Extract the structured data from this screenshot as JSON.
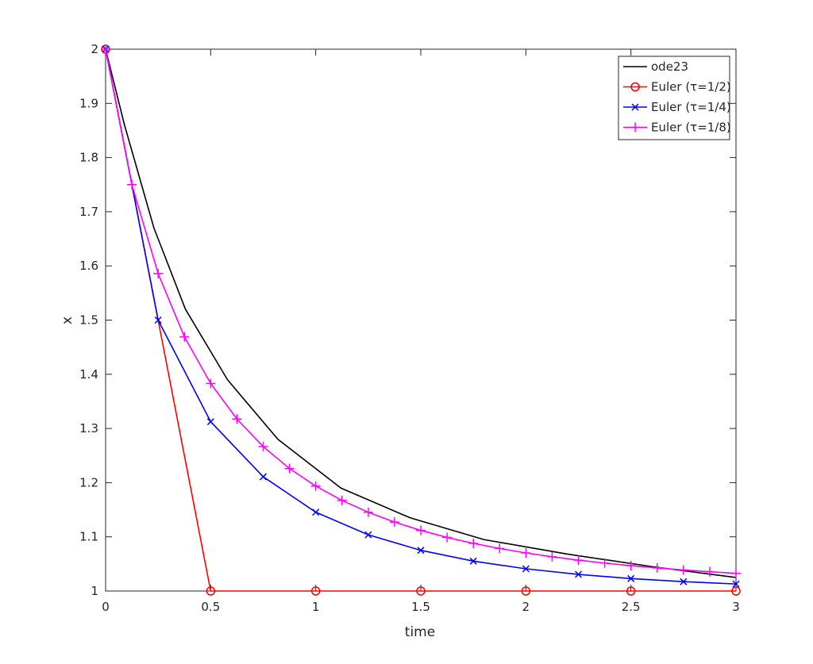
{
  "chart_data": {
    "type": "line",
    "title": "",
    "xlabel": "time",
    "ylabel": "x",
    "xlim": [
      0,
      3
    ],
    "ylim": [
      1,
      2
    ],
    "xticks": [
      "0",
      "0.5",
      "1",
      "1.5",
      "2",
      "2.5",
      "3"
    ],
    "yticks": [
      "1",
      "1.1",
      "1.2",
      "1.3",
      "1.4",
      "1.5",
      "1.6",
      "1.7",
      "1.8",
      "1.9",
      "2"
    ],
    "grid": false,
    "legend_position": "top-right",
    "series": [
      {
        "name": "ode23",
        "color": "#000000",
        "marker": "none",
        "x": [
          0,
          0.09,
          0.23,
          0.38,
          0.58,
          0.82,
          1.12,
          1.45,
          1.8,
          2.2,
          2.6,
          3.0
        ],
        "y": [
          2.0,
          1.86,
          1.67,
          1.52,
          1.39,
          1.28,
          1.19,
          1.135,
          1.095,
          1.068,
          1.045,
          1.025
        ]
      },
      {
        "name": "Euler (τ=1/2)",
        "color": "#ff0000",
        "marker": "circle",
        "x": [
          0,
          0.5,
          1.0,
          1.5,
          2.0,
          2.5,
          3.0
        ],
        "y": [
          2.0,
          1.0,
          1.0,
          1.0,
          1.0,
          1.0,
          1.0
        ]
      },
      {
        "name": "Euler (τ=1/4)",
        "color": "#0000ff",
        "marker": "x",
        "x": [
          0,
          0.25,
          0.5,
          0.75,
          1.0,
          1.25,
          1.5,
          1.75,
          2.0,
          2.25,
          2.5,
          2.75,
          3.0
        ],
        "y": [
          2.0,
          1.5,
          1.3125,
          1.2109,
          1.1455,
          1.1038,
          1.0751,
          1.0552,
          1.041,
          1.0307,
          1.023,
          1.0173,
          1.013
        ]
      },
      {
        "name": "Euler (τ=1/8)",
        "color": "#ff00ff",
        "marker": "plus",
        "x": [
          0,
          0.125,
          0.25,
          0.375,
          0.5,
          0.625,
          0.75,
          0.875,
          1.0,
          1.125,
          1.25,
          1.375,
          1.5,
          1.625,
          1.75,
          1.875,
          2.0,
          2.125,
          2.25,
          2.375,
          2.5,
          2.625,
          2.75,
          2.875,
          3.0
        ],
        "y": [
          2.0,
          1.75,
          1.5859,
          1.4691,
          1.383,
          1.3175,
          1.2665,
          1.2261,
          1.1937,
          1.1672,
          1.1454,
          1.1272,
          1.1119,
          1.0989,
          1.0879,
          1.0785,
          1.0703,
          1.0632,
          1.057,
          1.0516,
          1.0468,
          1.0426,
          1.0389,
          1.0356,
          1.0327
        ]
      }
    ]
  }
}
